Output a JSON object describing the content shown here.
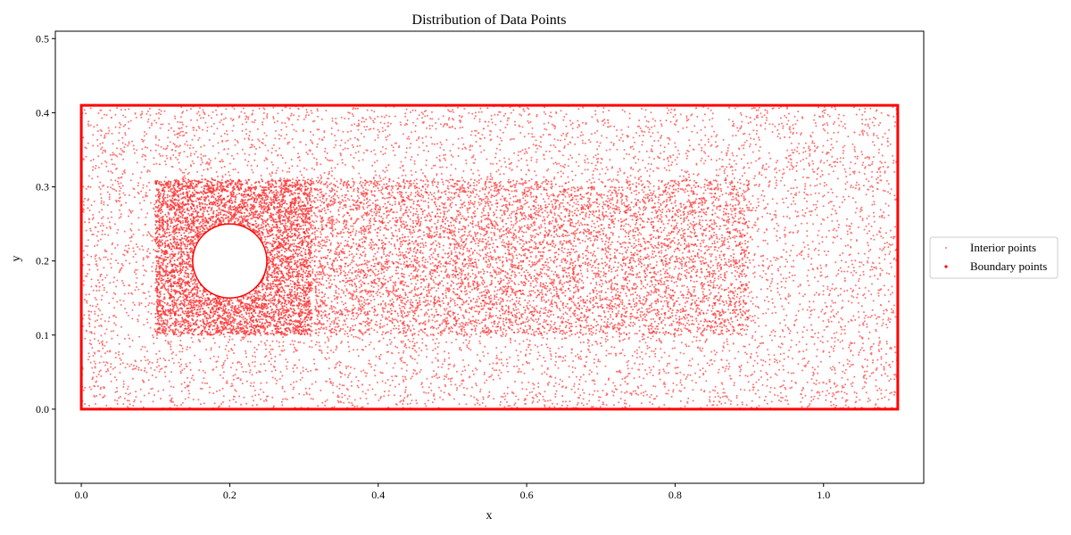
{
  "chart_data": {
    "type": "scatter",
    "title": "Distribution of Data Points",
    "xlabel": "x",
    "ylabel": "y",
    "xlim": [
      -0.035,
      1.135
    ],
    "ylim": [
      -0.1,
      0.51
    ],
    "x_ticks": [
      "0.0",
      "0.2",
      "0.4",
      "0.6",
      "0.8",
      "1.0"
    ],
    "y_ticks": [
      "0.0",
      "0.1",
      "0.2",
      "0.3",
      "0.4",
      "0.5"
    ],
    "grid": false,
    "legend_position": "right",
    "colors": {
      "points": "#ff0000",
      "interior_legend": "#e8a0a0",
      "axes": "#000000"
    },
    "domain": {
      "x": [
        0.0,
        1.1
      ],
      "y": [
        0.0,
        0.41
      ]
    },
    "cylinder": {
      "center": [
        0.2,
        0.2
      ],
      "radius": 0.05
    },
    "dense_regions": [
      {
        "x": [
          0.1,
          0.31
        ],
        "y": [
          0.1,
          0.31
        ],
        "level": "high"
      },
      {
        "x": [
          0.31,
          0.9
        ],
        "y": [
          0.1,
          0.31
        ],
        "level": "medium"
      }
    ],
    "series": [
      {
        "name": "Interior points",
        "marker": "dot",
        "alpha": 0.4
      },
      {
        "name": "Boundary points",
        "marker": "dot",
        "alpha": 1.0
      }
    ]
  }
}
